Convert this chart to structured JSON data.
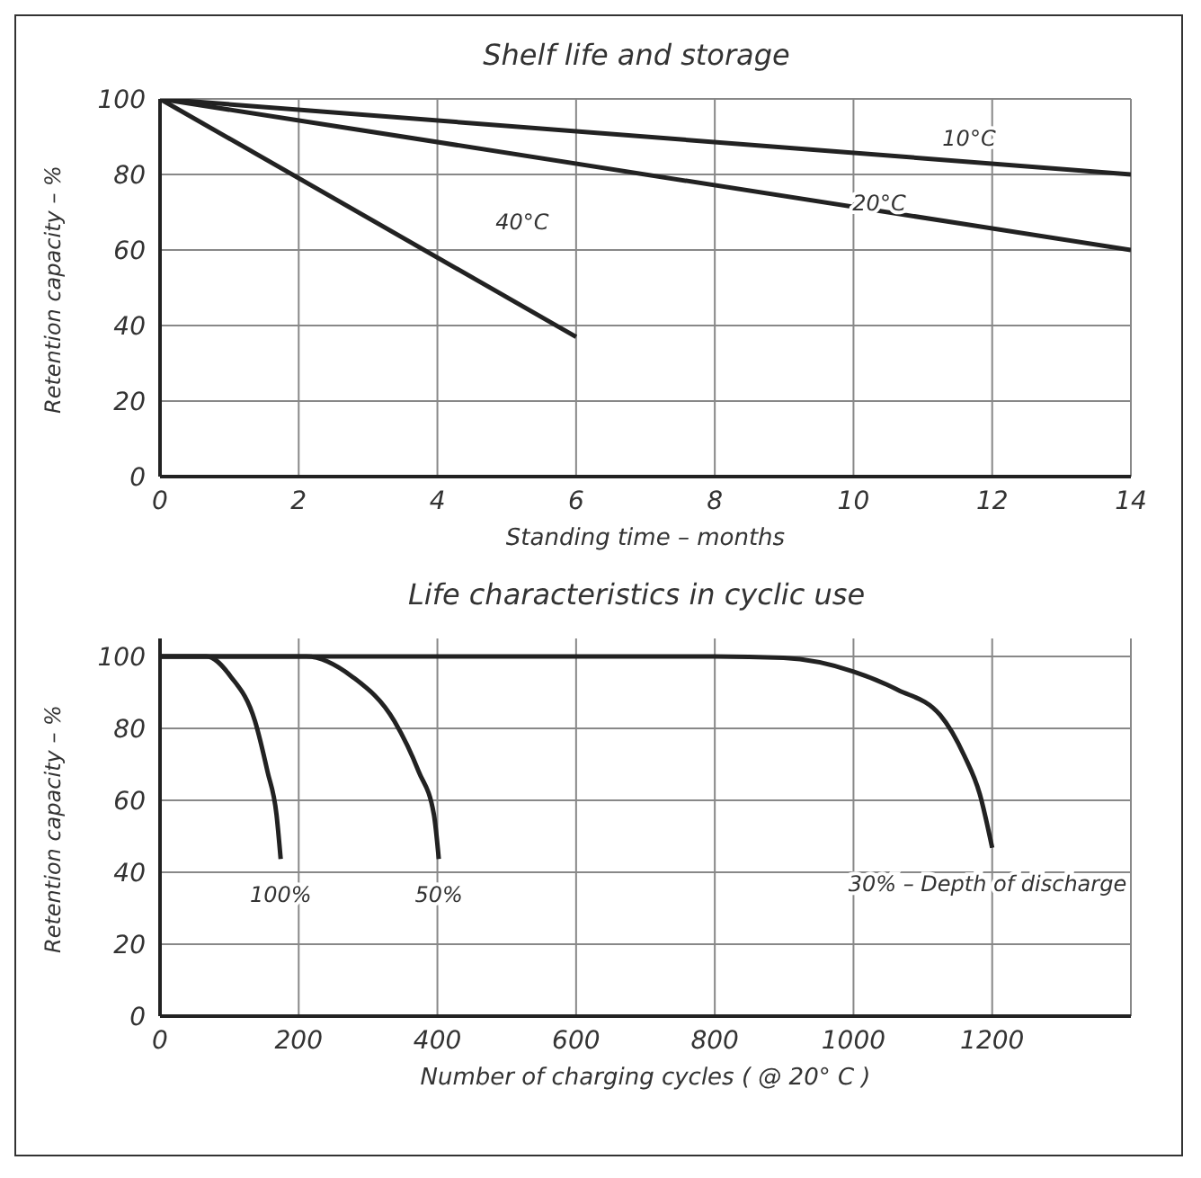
{
  "chart_data": [
    {
      "type": "line",
      "title": "Shelf life and storage",
      "xlabel": "Standing time – months",
      "ylabel": "Retention capacity – %",
      "xlim": [
        0,
        14
      ],
      "xticks": [
        0,
        2,
        4,
        6,
        8,
        10,
        12,
        14
      ],
      "ylim": [
        0,
        100
      ],
      "yticks": [
        0,
        20,
        40,
        60,
        80,
        100
      ],
      "grid": true,
      "legend": false,
      "marker": "none",
      "line_style": "solid",
      "series": [
        {
          "name": "10°C",
          "color": "#222222",
          "x": [
            0,
            14
          ],
          "values": [
            100,
            80
          ]
        },
        {
          "name": "20°C",
          "color": "#222222",
          "x": [
            0,
            14
          ],
          "values": [
            100,
            60
          ]
        },
        {
          "name": "40°C",
          "color": "#222222",
          "x": [
            0,
            6
          ],
          "values": [
            100,
            37
          ]
        }
      ]
    },
    {
      "type": "line",
      "title": "Life characteristics in cyclic use",
      "xlabel": "Number of charging cycles ( @ 20° C )",
      "ylabel": "Retention capacity – %",
      "xlim": [
        0,
        1400
      ],
      "xticks": [
        0,
        200,
        400,
        600,
        800,
        1000,
        1200,
        {
          "value": 1400,
          "label": null
        }
      ],
      "ylim": [
        0,
        105
      ],
      "yticks": [
        0,
        20,
        40,
        60,
        80,
        100
      ],
      "grid": true,
      "legend": false,
      "marker": "none",
      "line_style": "solid",
      "series": [
        {
          "name": "100%",
          "color": "#222222",
          "x": [
            0,
            67,
            102,
            137,
            155,
            168,
            174
          ],
          "values": [
            100,
            100,
            94.4,
            82,
            68,
            56,
            43.7
          ]
        },
        {
          "name": "50%",
          "color": "#222222",
          "x": [
            0,
            211,
            277,
            338,
            373,
            395,
            402
          ],
          "values": [
            100,
            100,
            94.4,
            82,
            68,
            56,
            43.7
          ]
        },
        {
          "name": "30% – Depth of discharge",
          "color": "#222222",
          "x": [
            0,
            800,
            899,
            1000,
            1064,
            1125,
            1160,
            1182,
            1200
          ],
          "values": [
            100,
            100,
            99.6,
            95.8,
            90.7,
            83.7,
            72.3,
            61.8,
            46.8
          ]
        }
      ]
    }
  ]
}
